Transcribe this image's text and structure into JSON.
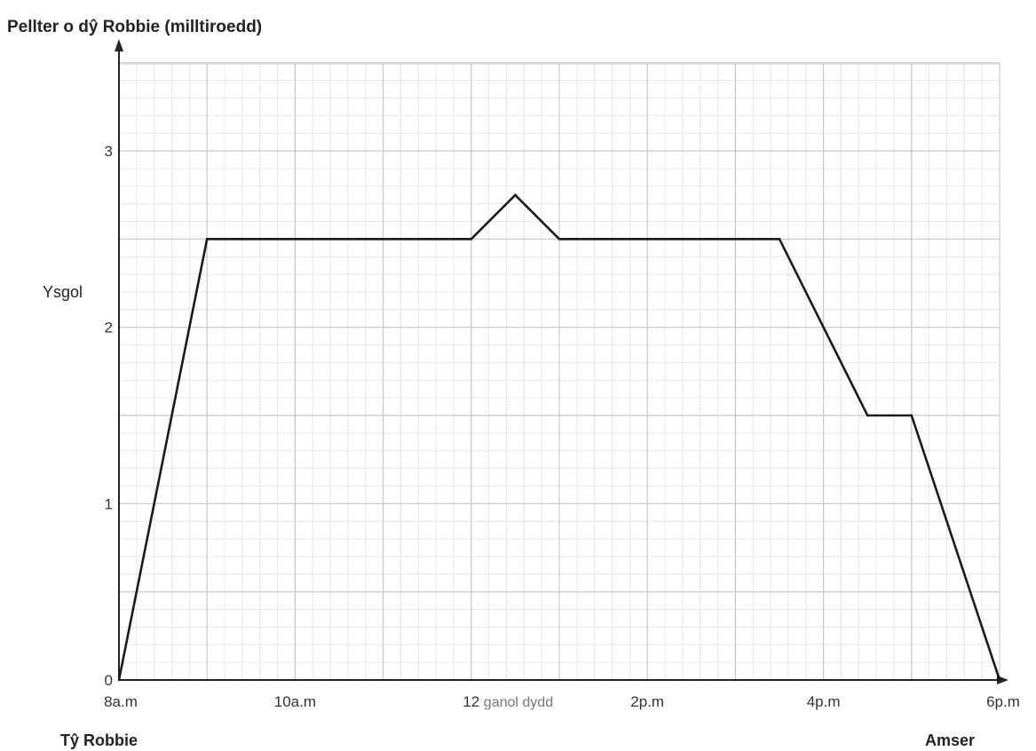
{
  "chart_data": {
    "type": "line",
    "title": "",
    "ylabel": "Pellter o dŷ Robbie (milltiroedd)",
    "xlabel": "Amser",
    "origin_label": "Tŷ Robbie",
    "y_annotation": {
      "label": "Ysgol",
      "value": 2.2
    },
    "xlim": [
      8,
      18
    ],
    "ylim": [
      0,
      3.5
    ],
    "x_ticks": [
      {
        "value": 8,
        "label": "8a.m"
      },
      {
        "value": 10,
        "label": "10a.m"
      },
      {
        "value": 12,
        "label": "12",
        "suffix": "ganol dydd"
      },
      {
        "value": 14,
        "label": "2p.m"
      },
      {
        "value": 16,
        "label": "4p.m"
      },
      {
        "value": 18,
        "label": "6p.m"
      }
    ],
    "y_ticks": [
      {
        "value": 0,
        "label": "0"
      },
      {
        "value": 1,
        "label": "1"
      },
      {
        "value": 2,
        "label": "2"
      },
      {
        "value": 3,
        "label": "3"
      }
    ],
    "grid": true,
    "series": [
      {
        "name": "",
        "color": "#1a1a1a",
        "x": [
          8,
          9,
          12,
          12.5,
          13,
          15.5,
          16.5,
          17,
          18
        ],
        "y": [
          0,
          2.5,
          2.5,
          2.75,
          2.5,
          2.5,
          1.5,
          1.5,
          0
        ]
      }
    ]
  }
}
